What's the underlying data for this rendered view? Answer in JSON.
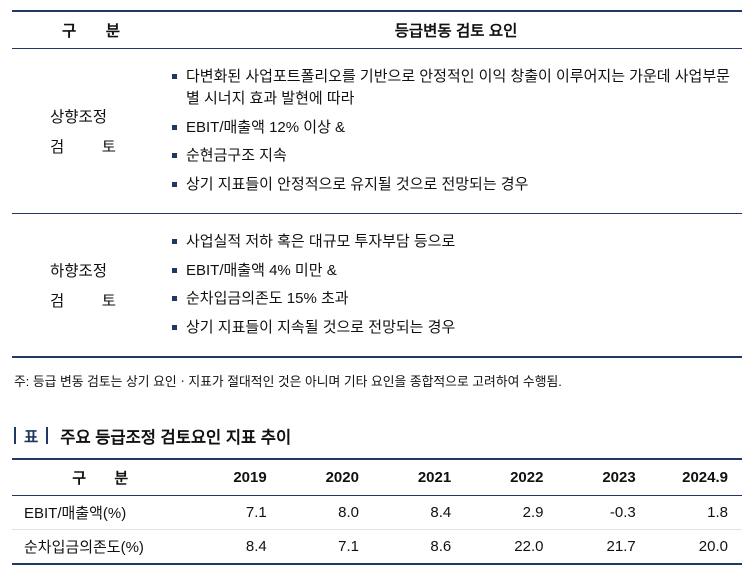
{
  "colors": {
    "navy": "#1f3864",
    "text": "#111111"
  },
  "table1": {
    "headers": {
      "category": "구 분",
      "factors": "등급변동 검토 요인"
    },
    "rows": [
      {
        "label_line1": "상향조정",
        "label_line2": "검 토",
        "bullets": [
          "다변화된 사업포트폴리오를 기반으로 안정적인 이익 창출이 이루어지는 가운데 사업부문별 시너지 효과 발현에 따라",
          "EBIT/매출액 12% 이상 &",
          "순현금구조 지속",
          "상기 지표들이 안정적으로 유지될 것으로 전망되는 경우"
        ]
      },
      {
        "label_line1": "하향조정",
        "label_line2": "검 토",
        "bullets": [
          "사업실적 저하 혹은 대규모 투자부담 등으로",
          "EBIT/매출액 4% 미만 &",
          "순차입금의존도 15% 초과",
          "상기 지표들이 지속될 것으로 전망되는 경우"
        ]
      }
    ],
    "footnote": "주: 등급 변동 검토는 상기 요인ㆍ지표가 절대적인 것은 아니며 기타 요인을 종합적으로 고려하여 수행됨."
  },
  "table2": {
    "tag": "표",
    "title": "주요 등급조정 검토요인 지표 추이",
    "headers": [
      "구 분",
      "2019",
      "2020",
      "2021",
      "2022",
      "2023",
      "2024.9"
    ],
    "rows": [
      {
        "label": "EBIT/매출액(%)",
        "values": [
          "7.1",
          "8.0",
          "8.4",
          "2.9",
          "-0.3",
          "1.8"
        ]
      },
      {
        "label": "순차입금의존도(%)",
        "values": [
          "8.4",
          "7.1",
          "8.6",
          "22.0",
          "21.7",
          "20.0"
        ]
      }
    ]
  },
  "chart_data": {
    "type": "table",
    "title": "주요 등급조정 검토요인 지표 추이",
    "categories": [
      "2019",
      "2020",
      "2021",
      "2022",
      "2023",
      "2024.9"
    ],
    "series": [
      {
        "name": "EBIT/매출액(%)",
        "values": [
          7.1,
          8.0,
          8.4,
          2.9,
          -0.3,
          1.8
        ]
      },
      {
        "name": "순차입금의존도(%)",
        "values": [
          8.4,
          7.1,
          8.6,
          22.0,
          21.7,
          20.0
        ]
      }
    ]
  }
}
